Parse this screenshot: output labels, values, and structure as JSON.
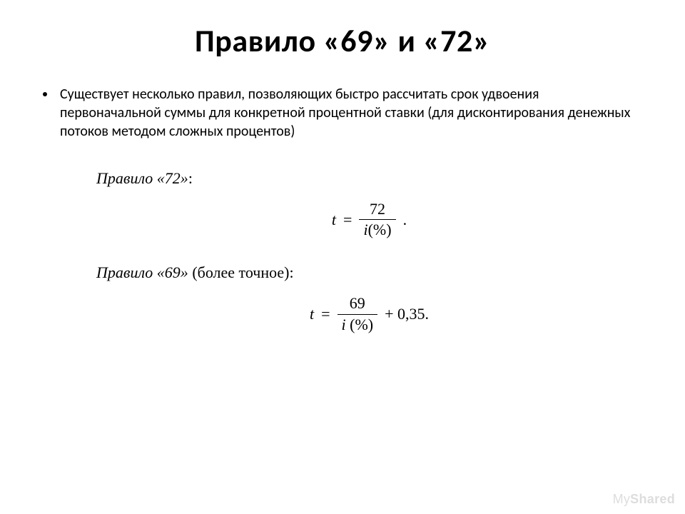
{
  "title": "Правило «69» и «72»",
  "bullet": "Существует несколько правил, позволяющих быстро рассчитать срок удвоения первоначальной суммы для конкретной процентной ставки (для дисконтирования денежных потоков методом  сложных процентов)",
  "rule72": {
    "label_italic": "Правило «72»",
    "label_tail": ":",
    "numerator": "72",
    "denom_i": "i",
    "denom_rest": "(%)",
    "period": "."
  },
  "rule69": {
    "label_italic": "Правило «69»",
    "label_rest": " (более точное):",
    "numerator": "69",
    "denom_i": "i",
    "denom_rest": " (%)",
    "tail": "+ 0,35."
  },
  "t_symbol": "t",
  "equals": "=",
  "watermark_my": "My",
  "watermark_shared": "Shared"
}
